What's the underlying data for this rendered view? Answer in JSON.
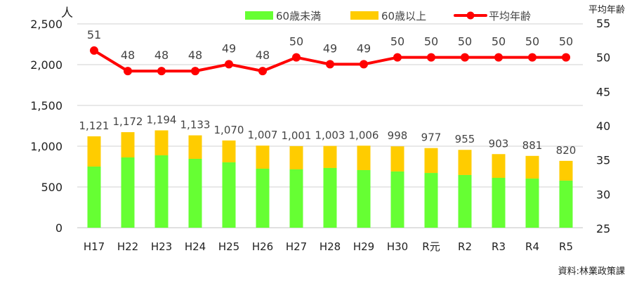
{
  "chart_data": {
    "type": "bar+line",
    "title": "",
    "categories": [
      "H17",
      "H22",
      "H23",
      "H24",
      "H25",
      "H26",
      "H27",
      "H28",
      "H29",
      "H30",
      "R元",
      "R2",
      "R3",
      "R4",
      "R5"
    ],
    "series": [
      {
        "name": "60歳未満",
        "type": "stacked-bar",
        "axis": "left",
        "color": "#66ff33",
        "values": [
          750,
          862,
          888,
          845,
          802,
          724,
          716,
          733,
          707,
          690,
          672,
          647,
          612,
          603,
          578
        ]
      },
      {
        "name": "60歳以上",
        "type": "stacked-bar",
        "axis": "left",
        "color": "#ffcc00",
        "values": [
          371,
          310,
          306,
          288,
          268,
          283,
          285,
          270,
          299,
          308,
          305,
          308,
          291,
          278,
          242
        ]
      },
      {
        "name": "平均年齢",
        "type": "line",
        "axis": "right",
        "color": "#ff0000",
        "values": [
          51,
          48,
          48,
          48,
          49,
          48,
          50,
          49,
          49,
          50,
          50,
          50,
          50,
          50,
          50
        ]
      }
    ],
    "totals": [
      1121,
      1172,
      1194,
      1133,
      1070,
      1007,
      1001,
      1003,
      1006,
      998,
      977,
      955,
      903,
      881,
      820
    ],
    "totals_labels": [
      "1,121",
      "1,172",
      "1,194",
      "1,133",
      "1,070",
      "1,007",
      "1,001",
      "1,003",
      "1,006",
      "998",
      "977",
      "955",
      "903",
      "881",
      "820"
    ],
    "ylabel": "人",
    "ylabel_right": "平均年齢",
    "ylim": [
      0,
      2500
    ],
    "ylim_right": [
      25,
      55
    ],
    "yticks": [
      "0",
      "500",
      "1,000",
      "1,500",
      "2,000",
      "2,500"
    ],
    "yticks_right": [
      "25",
      "30",
      "35",
      "40",
      "45",
      "50",
      "55"
    ],
    "grid": true,
    "legend_position": "top",
    "source_note": "資料:林業政策課"
  },
  "legend": [
    {
      "label": "60歳未満",
      "kind": "bar",
      "color": "#66ff33"
    },
    {
      "label": "60歳以上",
      "kind": "bar",
      "color": "#ffcc00"
    },
    {
      "label": "平均年齢",
      "kind": "line",
      "color": "#ff0000"
    }
  ]
}
